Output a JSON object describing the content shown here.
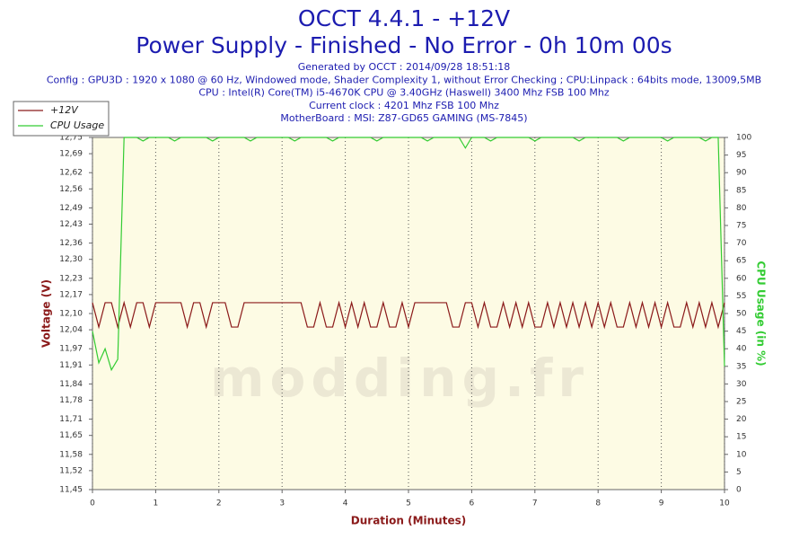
{
  "chart_data": {
    "type": "line",
    "title": "OCCT 4.4.1 - +12V",
    "subtitle": "Power Supply - Finished - No Error - 0h 10m 00s",
    "info": [
      "Generated by OCCT : 2014/09/28 18:51:18",
      "Config : GPU3D : 1920 x 1080 @ 60 Hz, Windowed mode, Shader Complexity 1, without Error Checking ; CPU:Linpack : 64bits mode, 13009,5MB",
      "CPU : Intel(R) Core(TM) i5-4670K CPU @ 3.40GHz (Haswell) 3400 Mhz FSB 100 Mhz",
      "Current clock : 4201 Mhz FSB 100 Mhz",
      "MotherBoard : MSI: Z87-GD65 GAMING (MS-7845)"
    ],
    "watermark": "modding.fr",
    "xlabel": "Duration (Minutes)",
    "ylabel": "Voltage (V)",
    "y2label": "CPU Usage (in %)",
    "xlim": [
      0,
      10
    ],
    "xticks": [
      0,
      1,
      2,
      3,
      4,
      5,
      6,
      7,
      8,
      9,
      10
    ],
    "ylim": [
      11.45,
      12.75
    ],
    "yticks": [
      {
        "value": 11.45,
        "label": "11,45"
      },
      {
        "value": 11.52,
        "label": "11,52"
      },
      {
        "value": 11.58,
        "label": "11,58"
      },
      {
        "value": 11.65,
        "label": "11,65"
      },
      {
        "value": 11.71,
        "label": "11,71"
      },
      {
        "value": 11.78,
        "label": "11,78"
      },
      {
        "value": 11.84,
        "label": "11,84"
      },
      {
        "value": 11.91,
        "label": "11,91"
      },
      {
        "value": 11.97,
        "label": "11,97"
      },
      {
        "value": 12.04,
        "label": "12,04"
      },
      {
        "value": 12.1,
        "label": "12,10"
      },
      {
        "value": 12.17,
        "label": "12,17"
      },
      {
        "value": 12.23,
        "label": "12,23"
      },
      {
        "value": 12.3,
        "label": "12,30"
      },
      {
        "value": 12.36,
        "label": "12,36"
      },
      {
        "value": 12.43,
        "label": "12,43"
      },
      {
        "value": 12.49,
        "label": "12,49"
      },
      {
        "value": 12.56,
        "label": "12,56"
      },
      {
        "value": 12.62,
        "label": "12,62"
      },
      {
        "value": 12.69,
        "label": "12,69"
      },
      {
        "value": 12.75,
        "label": "12,75"
      }
    ],
    "y2lim": [
      0,
      100
    ],
    "y2ticks": [
      0,
      5,
      10,
      15,
      20,
      25,
      30,
      35,
      40,
      45,
      50,
      55,
      60,
      65,
      70,
      75,
      80,
      85,
      90,
      95,
      100
    ],
    "grid": true,
    "legend": "top-left",
    "x": [
      0,
      0.1,
      0.2,
      0.3,
      0.4,
      0.5,
      0.6,
      0.7,
      0.8,
      0.9,
      1,
      1.1,
      1.2,
      1.3,
      1.4,
      1.5,
      1.6,
      1.7,
      1.8,
      1.9,
      2,
      2.1,
      2.2,
      2.3,
      2.4,
      2.5,
      2.6,
      2.7,
      2.8,
      2.9,
      3,
      3.1,
      3.2,
      3.3,
      3.4,
      3.5,
      3.6,
      3.7,
      3.8,
      3.9,
      4,
      4.1,
      4.2,
      4.3,
      4.4,
      4.5,
      4.6,
      4.7,
      4.8,
      4.9,
      5,
      5.1,
      5.2,
      5.3,
      5.4,
      5.5,
      5.6,
      5.7,
      5.8,
      5.9,
      6,
      6.1,
      6.2,
      6.3,
      6.4,
      6.5,
      6.6,
      6.7,
      6.8,
      6.9,
      7,
      7.1,
      7.2,
      7.3,
      7.4,
      7.5,
      7.6,
      7.7,
      7.8,
      7.9,
      8,
      8.1,
      8.2,
      8.3,
      8.4,
      8.5,
      8.6,
      8.7,
      8.8,
      8.9,
      9,
      9.1,
      9.2,
      9.3,
      9.4,
      9.5,
      9.6,
      9.7,
      9.8,
      9.9,
      10
    ],
    "series": [
      {
        "name": "+12V",
        "color": "#8b1a1a",
        "axis": "y",
        "values": [
          12.14,
          12.05,
          12.14,
          12.14,
          12.05,
          12.14,
          12.05,
          12.14,
          12.14,
          12.05,
          12.14,
          12.14,
          12.14,
          12.14,
          12.14,
          12.05,
          12.14,
          12.14,
          12.05,
          12.14,
          12.14,
          12.14,
          12.05,
          12.05,
          12.14,
          12.14,
          12.14,
          12.14,
          12.14,
          12.14,
          12.14,
          12.14,
          12.14,
          12.14,
          12.05,
          12.05,
          12.14,
          12.05,
          12.05,
          12.14,
          12.05,
          12.14,
          12.05,
          12.14,
          12.05,
          12.05,
          12.14,
          12.05,
          12.05,
          12.14,
          12.05,
          12.14,
          12.14,
          12.14,
          12.14,
          12.14,
          12.14,
          12.05,
          12.05,
          12.14,
          12.14,
          12.05,
          12.14,
          12.05,
          12.05,
          12.14,
          12.05,
          12.14,
          12.05,
          12.14,
          12.05,
          12.05,
          12.14,
          12.05,
          12.14,
          12.05,
          12.14,
          12.05,
          12.14,
          12.05,
          12.14,
          12.05,
          12.14,
          12.05,
          12.05,
          12.14,
          12.05,
          12.14,
          12.05,
          12.14,
          12.05,
          12.14,
          12.05,
          12.05,
          12.14,
          12.05,
          12.14,
          12.05,
          12.14,
          12.05,
          12.14
        ]
      },
      {
        "name": "CPU Usage",
        "color": "#33cc33",
        "axis": "y2",
        "values": [
          45,
          36,
          40,
          34,
          37,
          100,
          100,
          100,
          99,
          100,
          100,
          100,
          100,
          99,
          100,
          100,
          100,
          100,
          100,
          99,
          100,
          100,
          100,
          100,
          100,
          99,
          100,
          100,
          100,
          100,
          100,
          100,
          99,
          100,
          100,
          100,
          100,
          100,
          99,
          100,
          100,
          100,
          100,
          100,
          100,
          99,
          100,
          100,
          100,
          100,
          100,
          100,
          100,
          99,
          100,
          100,
          100,
          100,
          100,
          97,
          100,
          100,
          100,
          99,
          100,
          100,
          100,
          100,
          100,
          100,
          99,
          100,
          100,
          100,
          100,
          100,
          100,
          99,
          100,
          100,
          100,
          100,
          100,
          100,
          99,
          100,
          100,
          100,
          100,
          100,
          100,
          99,
          100,
          100,
          100,
          100,
          100,
          99,
          100,
          100,
          35
        ]
      }
    ]
  }
}
